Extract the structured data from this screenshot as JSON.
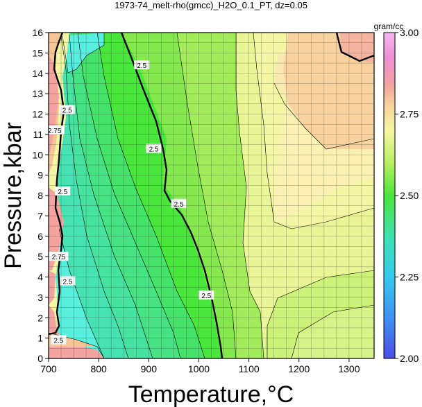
{
  "chart_data": {
    "type": "contour",
    "title": "1973-74_melt-rho(gmcc)_H2O_0.1_PT, dz=0.05",
    "xlabel": "Temperature,°C",
    "ylabel": "Pressure,kbar",
    "xlim": [
      700,
      1350
    ],
    "ylim": [
      0,
      16
    ],
    "x_ticks": [
      700,
      800,
      900,
      1000,
      1100,
      1200,
      1300
    ],
    "y_ticks": [
      0,
      1,
      2,
      3,
      4,
      5,
      6,
      7,
      8,
      9,
      10,
      11,
      12,
      13,
      14,
      15,
      16
    ],
    "grid": true,
    "colorbar": {
      "unit": "gram/cc",
      "range": [
        2.0,
        3.0
      ],
      "ticks": [
        "2.00",
        "2.25",
        "2.50",
        "2.75",
        "3.00"
      ],
      "position": "right"
    },
    "contour_interval": 0.05,
    "bold_contour_level": 2.5,
    "contour_labels": [
      {
        "text": "2.5",
        "x": 886,
        "y": 14.4
      },
      {
        "text": "2.5",
        "x": 910,
        "y": 10.3
      },
      {
        "text": "2.5",
        "x": 960,
        "y": 7.6
      },
      {
        "text": "2.5",
        "x": 1015,
        "y": 3.1
      },
      {
        "text": "2.5",
        "x": 737,
        "y": 12.2
      },
      {
        "text": "2.5",
        "x": 728,
        "y": 8.2
      },
      {
        "text": "2.5",
        "x": 738,
        "y": 3.8
      },
      {
        "text": "2.75",
        "x": 712,
        "y": 11.2
      },
      {
        "text": "2.75",
        "x": 720,
        "y": 5.0
      },
      {
        "text": "2.5",
        "x": 720,
        "y": 0.9
      }
    ],
    "regions": [
      {
        "level": "2.55",
        "color": "#c2f06a"
      },
      {
        "level": "2.45",
        "color": "#49e63c"
      },
      {
        "level": "2.40",
        "color": "#46e283"
      },
      {
        "level": "2.35",
        "color": "#47e2b1"
      },
      {
        "level": "2.30",
        "color": "#58f0dc"
      },
      {
        "level": "2.60",
        "color": "#d7f289"
      },
      {
        "level": "2.65",
        "color": "#f3f7a4"
      },
      {
        "level": "2.70",
        "color": "#fbf1b3"
      },
      {
        "level": "2.75",
        "color": "#f6c596"
      },
      {
        "level": "2.85",
        "color": "#f4a3a0"
      }
    ]
  }
}
